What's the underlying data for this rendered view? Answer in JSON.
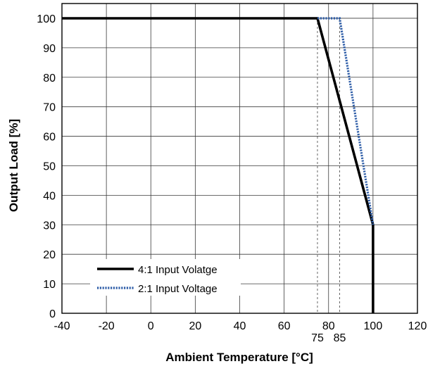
{
  "chart_data": {
    "type": "line",
    "title": "",
    "xlabel": "Ambient Temperature [°C]",
    "ylabel": "Output Load [%]",
    "xlim": [
      -40,
      120
    ],
    "ylim": [
      0,
      105
    ],
    "x_ticks": [
      -40,
      -20,
      0,
      20,
      40,
      60,
      80,
      100,
      120
    ],
    "y_ticks": [
      0,
      10,
      20,
      30,
      40,
      50,
      60,
      70,
      80,
      90,
      100
    ],
    "x_tick_labels": [
      "-40",
      "-20",
      "0",
      "20",
      "40",
      "60",
      "80",
      "100",
      "120"
    ],
    "y_tick_labels": [
      "0",
      "10",
      "20",
      "30",
      "40",
      "50",
      "60",
      "70",
      "80",
      "90",
      "100"
    ],
    "extra_x_markers": [
      {
        "x": 75,
        "label": "75"
      },
      {
        "x": 85,
        "label": "85"
      }
    ],
    "grid": true,
    "legend_position": "bottom-left",
    "series": [
      {
        "name": "4:1 Input Volatge",
        "color": "#000000",
        "style": "solid",
        "points": [
          [
            -40,
            100
          ],
          [
            75,
            100
          ],
          [
            100,
            30
          ],
          [
            100,
            0
          ]
        ]
      },
      {
        "name": "2:1 Input Voltage",
        "color": "#2f5ea8",
        "style": "dotted",
        "points": [
          [
            75,
            100
          ],
          [
            85,
            100
          ],
          [
            100,
            30
          ]
        ]
      }
    ]
  }
}
